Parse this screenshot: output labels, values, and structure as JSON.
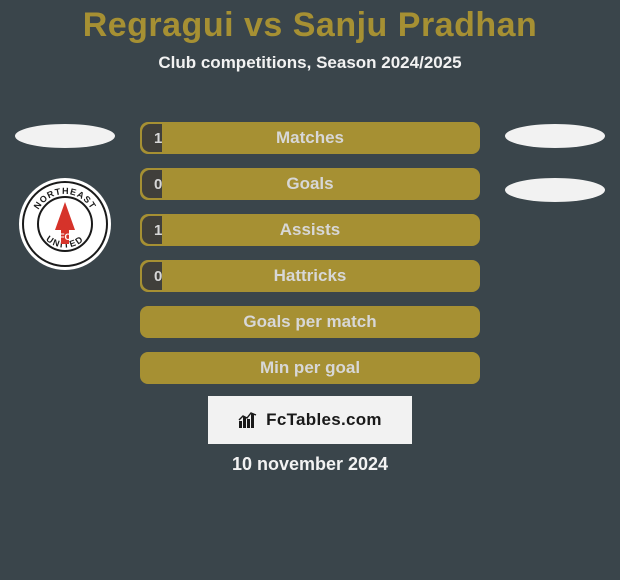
{
  "colors": {
    "background": "#3a454b",
    "title": "#a69033",
    "subtitle_text": "#f2f2f2",
    "bar_bg": "#a69033",
    "bar_fill": "#403f3b",
    "bar_border": "#a69033",
    "bar_text": "#d7d7d7",
    "value_text": "#d7d7d7",
    "avatar_blank": "#f2f2f2",
    "brand_bg": "#f2f2f2",
    "brand_text": "#1a1a1a",
    "date_text": "#f2f2f2",
    "badge_bg": "#ffffff",
    "badge_ring": "#1a1a1a",
    "badge_accent": "#d6332a"
  },
  "typography": {
    "title_fontsize": 34,
    "subtitle_fontsize": 17,
    "bar_label_fontsize": 17,
    "bar_value_fontsize": 15,
    "brand_fontsize": 17,
    "date_fontsize": 18
  },
  "title": "Regragui vs Sanju Pradhan",
  "subtitle": "Club competitions, Season 2024/2025",
  "left": {
    "avatar": null,
    "club": {
      "name": "NorthEast United FC",
      "badge_text_top": "NORTHEAST",
      "badge_text_bottom": "UNITED"
    }
  },
  "right": {
    "avatar": null,
    "club": null
  },
  "stats": [
    {
      "label": "Matches",
      "left_value": "1",
      "left_fill_pct": 6
    },
    {
      "label": "Goals",
      "left_value": "0",
      "left_fill_pct": 6
    },
    {
      "label": "Assists",
      "left_value": "1",
      "left_fill_pct": 6
    },
    {
      "label": "Hattricks",
      "left_value": "0",
      "left_fill_pct": 6
    },
    {
      "label": "Goals per match",
      "left_value": "",
      "left_fill_pct": 0
    },
    {
      "label": "Min per goal",
      "left_value": "",
      "left_fill_pct": 0
    }
  ],
  "brand": {
    "text": "FcTables.com"
  },
  "date": "10 november 2024"
}
